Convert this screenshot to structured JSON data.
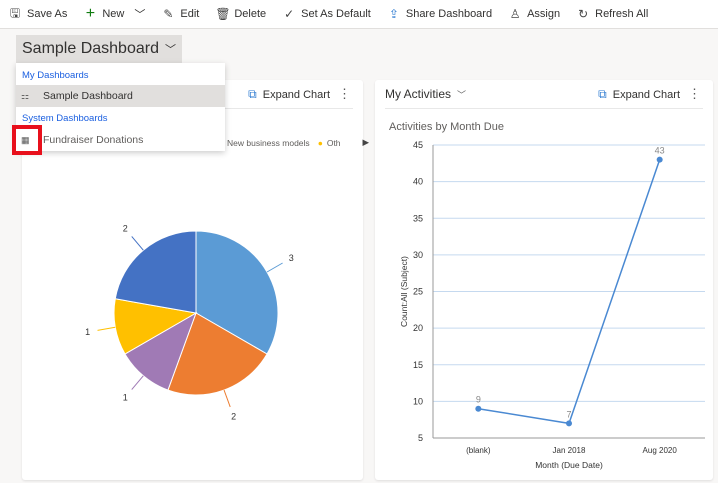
{
  "toolbar": {
    "items": [
      {
        "label": "Save As",
        "icon": "save-as-icon"
      },
      {
        "label": "New",
        "icon": "plus-icon"
      },
      {
        "label": "Edit",
        "icon": "pencil-icon"
      },
      {
        "label": "Delete",
        "icon": "trash-icon"
      },
      {
        "label": "Set As Default",
        "icon": "checkmark-icon"
      },
      {
        "label": "Share Dashboard",
        "icon": "share-icon"
      },
      {
        "label": "Assign",
        "icon": "person-icon"
      },
      {
        "label": "Refresh All",
        "icon": "refresh-icon"
      }
    ]
  },
  "dashboard_selector": {
    "value": "Sample Dashboard"
  },
  "menu": {
    "my_header": "My Dashboards",
    "my_items": [
      "Sample Dashboard"
    ],
    "system_header": "System Dashboards",
    "system_items": [
      "Fundraiser Donations"
    ]
  },
  "card1": {
    "expand": "Expand Chart",
    "legend": [
      "New business models",
      "Oth"
    ]
  },
  "card2": {
    "title": "My Activities",
    "expand": "Expand Chart"
  },
  "chart_data": [
    {
      "type": "pie",
      "values": [
        3,
        2,
        1,
        1,
        2
      ],
      "colors": [
        "#5b9bd5",
        "#ed7d31",
        "#a07ab5",
        "#ffc000",
        "#4472c4"
      ],
      "labels": [
        "3",
        "2",
        "1",
        "1",
        "2"
      ]
    },
    {
      "type": "line",
      "title": "Activities by Month Due",
      "xlabel": "Month (Due Date)",
      "ylabel": "Count:All (Subject)",
      "categories": [
        "(blank)",
        "Jan 2018",
        "Aug 2020"
      ],
      "values": [
        9,
        7,
        43
      ],
      "ylim": [
        5,
        45
      ],
      "yticks": [
        "5",
        "10",
        "15",
        "20",
        "25",
        "30",
        "35",
        "40",
        "45"
      ],
      "color": "#4a89d2",
      "grid": true
    }
  ]
}
